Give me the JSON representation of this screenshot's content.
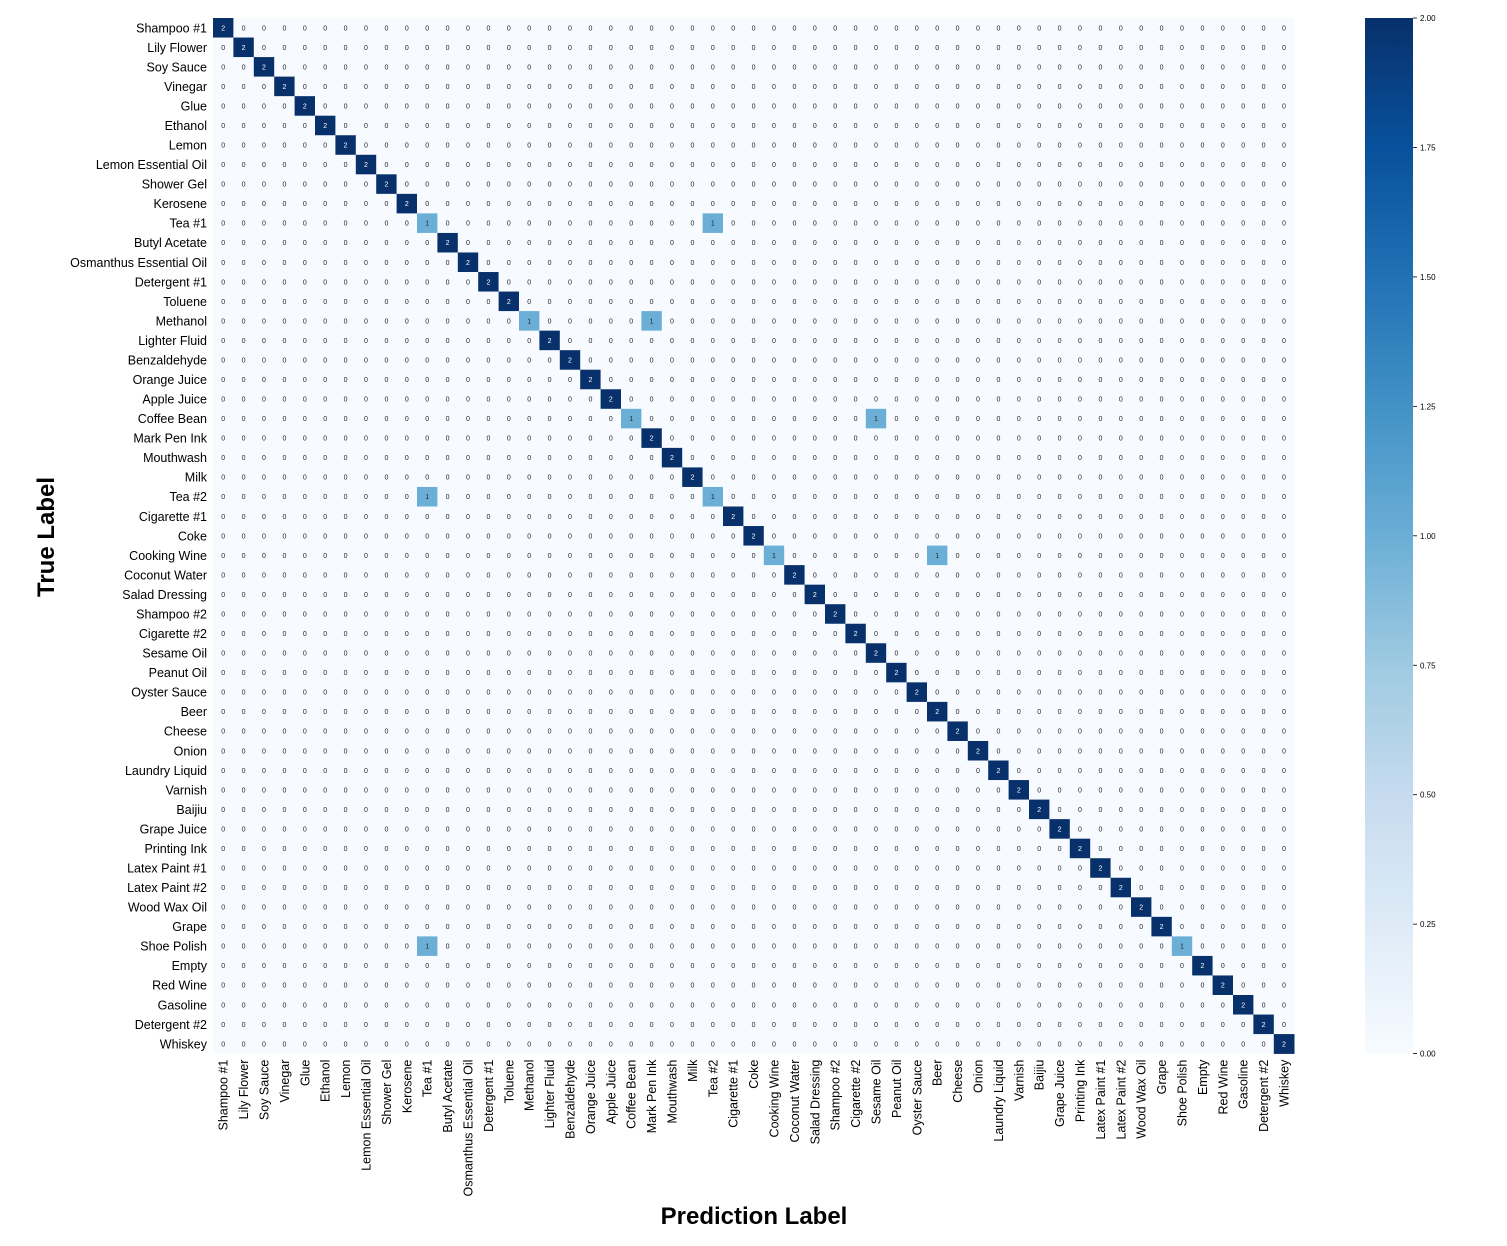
{
  "chart_data": {
    "type": "heatmap",
    "title": "",
    "xlabel": "Prediction Label",
    "ylabel": "True Label",
    "labels": [
      "Shampoo #1",
      "Lily Flower",
      "Soy Sauce",
      "Vinegar",
      "Glue",
      "Ethanol",
      "Lemon",
      "Lemon Essential Oil",
      "Shower Gel",
      "Kerosene",
      "Tea #1",
      "Butyl Acetate",
      "Osmanthus Essential Oil",
      "Detergent #1",
      "Toluene",
      "Methanol",
      "Lighter Fluid",
      "Benzaldehyde",
      "Orange Juice",
      "Apple Juice",
      "Coffee Bean",
      "Mark Pen Ink",
      "Mouthwash",
      "Milk",
      "Tea #2",
      "Cigarette #1",
      "Coke",
      "Cooking Wine",
      "Coconut Water",
      "Salad Dressing",
      "Shampoo #2",
      "Cigarette #2",
      "Sesame Oil",
      "Peanut Oil",
      "Oyster Sauce",
      "Beer",
      "Cheese",
      "Onion",
      "Laundry Liquid",
      "Varnish",
      "Baijiu",
      "Grape Juice",
      "Printing Ink",
      "Latex Paint #1",
      "Latex Paint #2",
      "Wood Wax Oil",
      "Grape",
      "Shoe Polish",
      "Empty",
      "Red Wine",
      "Gasoline",
      "Detergent #2",
      "Whiskey"
    ],
    "default_value": 0,
    "diagonal_value": 2,
    "off_pattern_cells": [
      {
        "row": 10,
        "col": 10,
        "value": 1
      },
      {
        "row": 10,
        "col": 24,
        "value": 1
      },
      {
        "row": 15,
        "col": 15,
        "value": 1
      },
      {
        "row": 15,
        "col": 21,
        "value": 1
      },
      {
        "row": 20,
        "col": 20,
        "value": 1
      },
      {
        "row": 20,
        "col": 32,
        "value": 1
      },
      {
        "row": 24,
        "col": 10,
        "value": 1
      },
      {
        "row": 24,
        "col": 24,
        "value": 1
      },
      {
        "row": 27,
        "col": 27,
        "value": 1
      },
      {
        "row": 27,
        "col": 35,
        "value": 1
      },
      {
        "row": 47,
        "col": 10,
        "value": 1
      },
      {
        "row": 47,
        "col": 47,
        "value": 1
      }
    ],
    "colorbar": {
      "range": [
        0,
        2
      ],
      "ticks": [
        "0.00",
        "0.25",
        "0.50",
        "0.75",
        "1.00",
        "1.25",
        "1.50",
        "1.75",
        "2.00"
      ],
      "colormap": "Blues",
      "color_low": "#f7fbff",
      "color_high": "#08306b"
    }
  }
}
